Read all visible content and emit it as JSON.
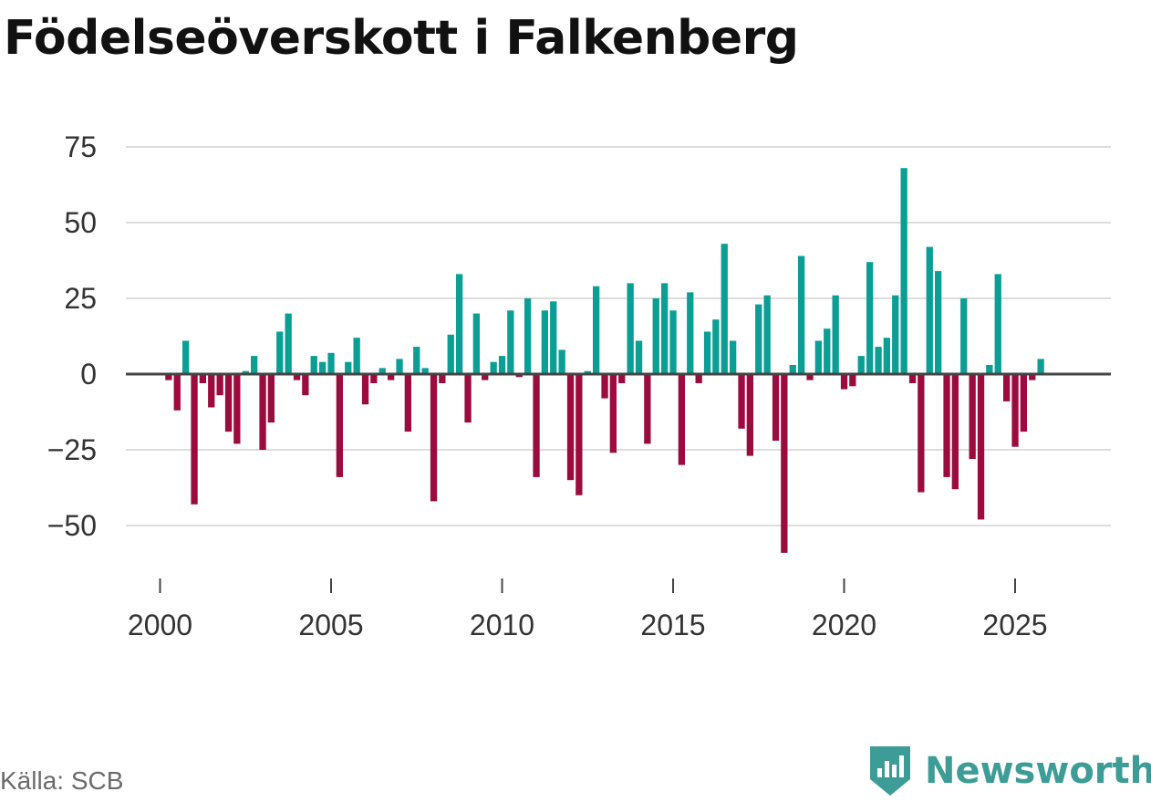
{
  "title": "Födelseöverskott i Falkenberg",
  "source": "Källa: SCB",
  "brand": {
    "name": "Newsworthy",
    "icon": "newsworthy-logo-icon"
  },
  "colors": {
    "positive": "#0a9e94",
    "negative": "#9b0b3d",
    "grid": "#dddddd",
    "zero_line": "#444444",
    "brand": "#3d9c96"
  },
  "chart_data": {
    "type": "bar",
    "title": "Födelseöverskott i Falkenberg",
    "xlabel": "",
    "ylabel": "",
    "frequency": "quarterly",
    "x_start": 2000.25,
    "x_step": 0.25,
    "xticks": [
      2000,
      2005,
      2010,
      2015,
      2020,
      2025
    ],
    "xtick_labels": [
      "2000",
      "2005",
      "2010",
      "2015",
      "2020",
      "2025"
    ],
    "yticks": [
      -50,
      -25,
      0,
      25,
      50,
      75
    ],
    "ytick_labels": [
      "−50",
      "−25",
      "0",
      "25",
      "50",
      "75"
    ],
    "ylim": [
      -60,
      75
    ],
    "xlim": [
      1999.0,
      2027.8
    ],
    "values": [
      -2,
      -12,
      11,
      -43,
      -3,
      -11,
      -7,
      -19,
      -23,
      1,
      6,
      -25,
      -16,
      14,
      20,
      -2,
      -7,
      6,
      4,
      7,
      -34,
      4,
      12,
      -10,
      -3,
      2,
      -2,
      5,
      -19,
      9,
      2,
      -42,
      -3,
      13,
      33,
      -16,
      20,
      -2,
      4,
      6,
      21,
      -1,
      25,
      -34,
      21,
      24,
      8,
      -35,
      -40,
      1,
      29,
      -8,
      -26,
      -3,
      30,
      11,
      -23,
      25,
      30,
      21,
      -30,
      27,
      -3,
      14,
      18,
      43,
      11,
      -18,
      -27,
      23,
      26,
      -22,
      -59,
      3,
      39,
      -2,
      11,
      15,
      26,
      -5,
      -4,
      6,
      37,
      9,
      12,
      26,
      68,
      -3,
      -39,
      42,
      34,
      -34,
      -38,
      25,
      -28,
      -48,
      3,
      33,
      -9,
      -24,
      -19,
      -2,
      5
    ]
  }
}
